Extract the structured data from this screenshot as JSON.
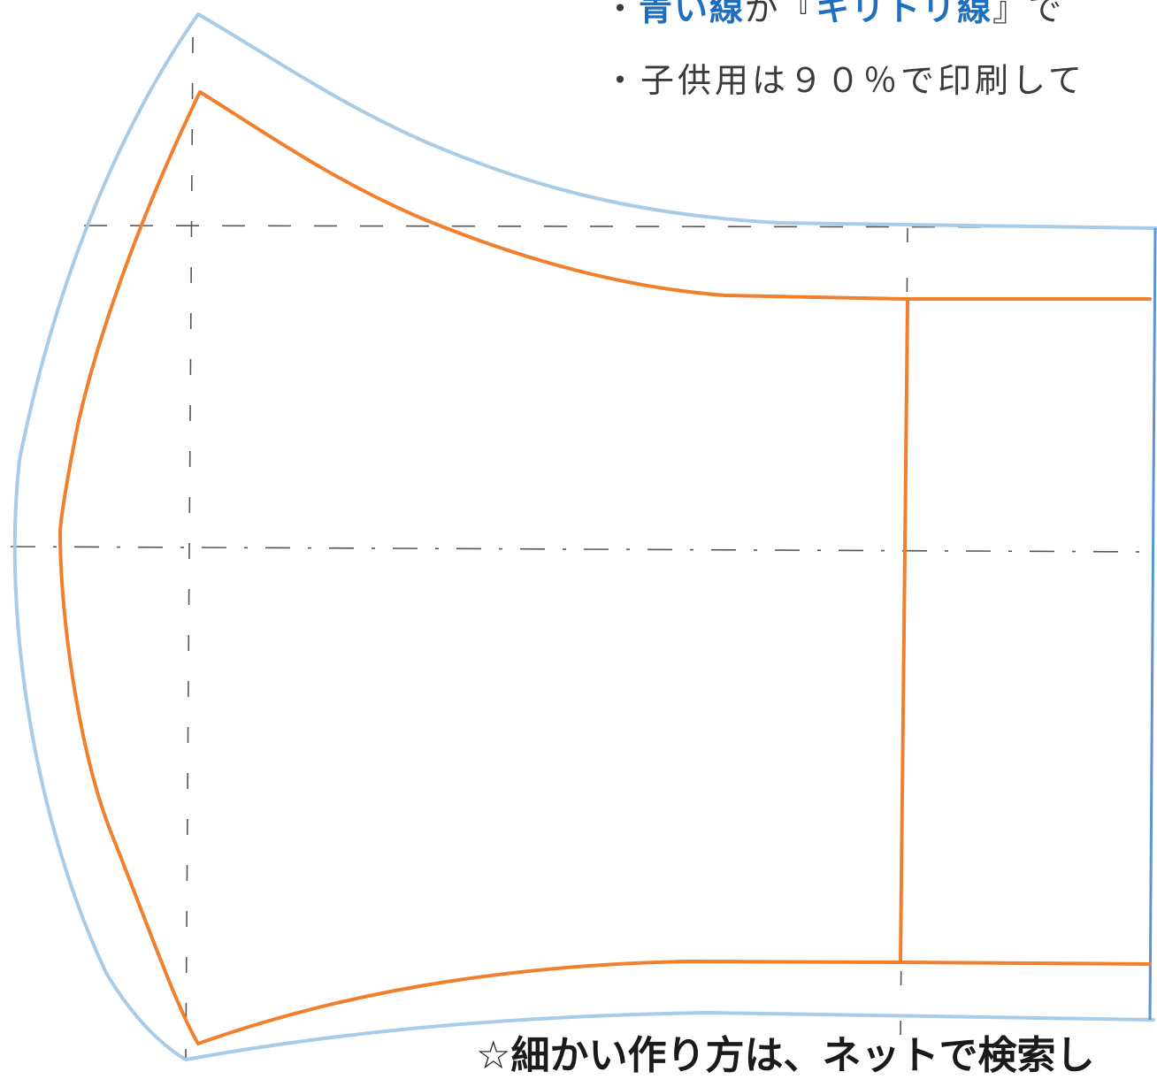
{
  "notes": {
    "line1": {
      "bullet": "・",
      "blue_line": "青い線",
      "particle": "が",
      "open_quote": "『",
      "cut_line": "キリトリ線",
      "close_quote": "』で"
    },
    "line2": "・子供用は９０％で印刷して"
  },
  "footer": "☆細かい作り方は、ネットで検索し",
  "colors": {
    "cut_line": "#a8cbe8",
    "cut_line_right": "#5b95d4",
    "sewing_line": "#f07f2e",
    "guide_line": "#555555",
    "emphasis_text": "#1e6fc0"
  }
}
